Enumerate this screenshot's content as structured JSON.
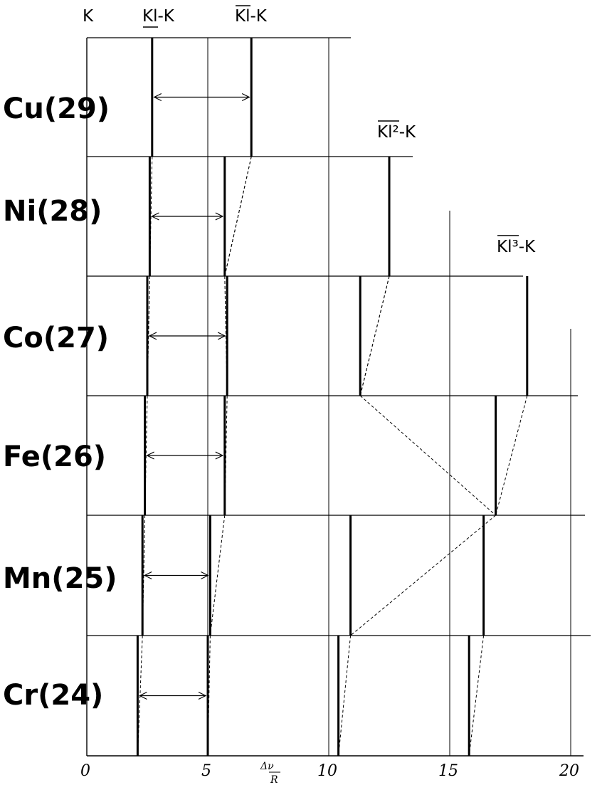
{
  "chart_data": {
    "type": "spectral line diagram",
    "series_labels": [
      "K",
      "Kl-K",
      "Kl-K",
      "Kl²-K",
      "Kl³-K"
    ],
    "x_axis": {
      "ticks": [
        "0",
        "5",
        "10",
        "15",
        "20"
      ],
      "tick_values": [
        0,
        5,
        10,
        15,
        20
      ],
      "label": "Δν/R",
      "label_num": "Δν",
      "label_den": "R",
      "range": [
        0,
        21
      ]
    },
    "elements": [
      {
        "label": "Cu(29)",
        "lines": [
          2.7,
          6.8
        ],
        "arrow": [
          2.7,
          6.8
        ]
      },
      {
        "label": "Ni(28)",
        "lines": [
          2.6,
          5.7,
          12.5
        ],
        "arrow": [
          2.6,
          5.7
        ]
      },
      {
        "label": "Co(27)",
        "lines": [
          2.5,
          5.8,
          11.3,
          18.2
        ],
        "arrow": [
          2.5,
          5.8
        ]
      },
      {
        "label": "Fe(26)",
        "lines": [
          2.4,
          5.7,
          16.9
        ],
        "arrow": [
          2.4,
          5.7
        ]
      },
      {
        "label": "Mn(25)",
        "lines": [
          2.3,
          5.1,
          10.9,
          16.4
        ],
        "arrow": [
          2.3,
          5.1
        ]
      },
      {
        "label": "Cr(24)",
        "lines": [
          2.1,
          5.0,
          10.4,
          15.8
        ],
        "arrow": [
          2.1,
          5.0
        ]
      }
    ],
    "reference_lines": [
      5,
      10,
      15,
      20
    ],
    "dashed_links": [
      {
        "from_element": 0,
        "to_element": 1,
        "values": [
          6.8,
          5.7
        ]
      },
      {
        "from_element": 1,
        "to_element": 2,
        "values": [
          12.5,
          11.3
        ]
      },
      {
        "from_element": 2,
        "to_element": 3,
        "values": [
          18.2,
          16.9
        ]
      }
    ]
  },
  "colors": {
    "ink": "#000000",
    "paper": "#ffffff"
  }
}
